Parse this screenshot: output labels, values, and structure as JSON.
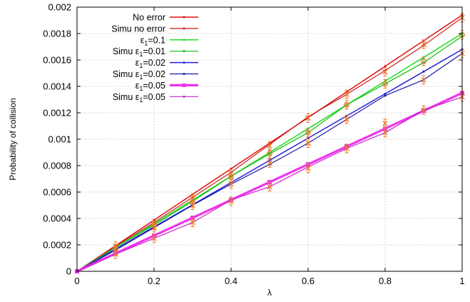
{
  "chart_data": {
    "type": "line",
    "title": "",
    "xlabel": "λ",
    "ylabel": "Probability of collision",
    "xlim": [
      0,
      1
    ],
    "ylim": [
      0,
      0.002
    ],
    "x_ticks": [
      "0",
      "0.2",
      "0.4",
      "0.6",
      "0.8",
      "1"
    ],
    "y_ticks": [
      "0",
      "0.0002",
      "0.0004",
      "0.0006",
      "0.0008",
      "0.001",
      "0.0012",
      "0.0014",
      "0.0016",
      "0.0018",
      "0.002"
    ],
    "grid": true,
    "legend_position": "top-left",
    "series": [
      {
        "name": "No error",
        "legend_base": "No error",
        "legend_sub": "",
        "legend_suffix": "",
        "color": "#dd1111",
        "width": 1.5,
        "x": [
          0,
          0.1,
          0.2,
          0.3,
          0.4,
          0.5,
          0.6,
          0.7,
          0.8,
          0.9,
          1.0
        ],
        "y": [
          0,
          0.000194,
          0.000388,
          0.000582,
          0.000776,
          0.00097,
          0.001164,
          0.001358,
          0.001552,
          0.001746,
          0.00194
        ]
      },
      {
        "name": "Simu no error",
        "legend_base": "Simu no error",
        "legend_sub": "",
        "legend_suffix": "",
        "color": "#cc1a1a",
        "width": 1.2,
        "x": [
          0,
          0.1,
          0.2,
          0.3,
          0.4,
          0.5,
          0.6,
          0.7,
          0.8,
          0.9,
          1.0
        ],
        "y": [
          0,
          0.00019,
          0.00037,
          0.00056,
          0.00075,
          0.00096,
          0.00117,
          0.00134,
          0.00152,
          0.00171,
          0.00192
        ],
        "markers": [
          0.00019,
          0.00035,
          0.00055,
          0.00074,
          0.00095,
          0.00116,
          0.00134,
          0.00151,
          0.00172,
          0.00192
        ]
      },
      {
        "name": "ε1=0.1",
        "legend_base": "ε",
        "legend_sub": "1",
        "legend_suffix": "=0.1",
        "color": "#22dd22",
        "width": 1.5,
        "x": [
          0,
          0.1,
          0.2,
          0.3,
          0.4,
          0.5,
          0.6,
          0.7,
          0.8,
          0.9,
          1.0
        ],
        "y": [
          0,
          0.00018,
          0.00036,
          0.00054,
          0.00072,
          0.0009,
          0.00108,
          0.00126,
          0.00144,
          0.00162,
          0.0018
        ]
      },
      {
        "name": "Simu ε1=0.01",
        "legend_base": "Simu ε",
        "legend_sub": "1",
        "legend_suffix": "=0.01",
        "color": "#11bb11",
        "width": 1.2,
        "x": [
          0,
          0.1,
          0.2,
          0.3,
          0.4,
          0.5,
          0.6,
          0.7,
          0.8,
          0.9,
          1.0
        ],
        "y": [
          0,
          0.00018,
          0.00035,
          0.00053,
          0.00072,
          0.00089,
          0.00105,
          0.00126,
          0.00142,
          0.00158,
          0.00178
        ],
        "markers": [
          0.00017,
          0.00035,
          0.00052,
          0.00071,
          0.00089,
          0.00105,
          0.00126,
          0.00142,
          0.00159,
          0.00179
        ]
      },
      {
        "name": "ε1=0.02",
        "legend_base": "ε",
        "legend_sub": "1",
        "legend_suffix": "=0.02",
        "color": "#2222dd",
        "width": 1.5,
        "x": [
          0,
          0.1,
          0.2,
          0.3,
          0.4,
          0.5,
          0.6,
          0.7,
          0.8,
          0.9,
          1.0
        ],
        "y": [
          0,
          0.000168,
          0.000336,
          0.000504,
          0.000672,
          0.00084,
          0.001008,
          0.001176,
          0.001344,
          0.001512,
          0.00168
        ]
      },
      {
        "name": "Simu ε1=0.02",
        "legend_base": "Simu ε",
        "legend_sub": "1",
        "legend_suffix": "=0.02",
        "color": "#1a1aaa",
        "width": 1.2,
        "x": [
          0,
          0.1,
          0.2,
          0.3,
          0.4,
          0.5,
          0.6,
          0.7,
          0.8,
          0.9,
          1.0
        ],
        "y": [
          0,
          0.00016,
          0.00033,
          0.0005,
          0.00066,
          0.00081,
          0.00097,
          0.00115,
          0.00133,
          0.00145,
          0.00165
        ],
        "markers": [
          0.00017,
          0.00033,
          0.0005,
          0.00066,
          0.00082,
          0.00097,
          0.00115,
          0.00112,
          0.00145,
          0.00165
        ]
      },
      {
        "name": "ε1=0.05",
        "legend_base": "ε",
        "legend_sub": "1",
        "legend_suffix": "=0.05",
        "color": "#ee33ee",
        "width": 3.2,
        "x": [
          0,
          0.1,
          0.2,
          0.3,
          0.4,
          0.5,
          0.6,
          0.7,
          0.8,
          0.9,
          1.0
        ],
        "y": [
          0,
          0.000135,
          0.00027,
          0.000405,
          0.00054,
          0.000675,
          0.00081,
          0.000945,
          0.00108,
          0.001215,
          0.00135
        ]
      },
      {
        "name": "Simu ε1=0.05",
        "legend_base": "Simu ε",
        "legend_sub": "1",
        "legend_suffix": "=0.05",
        "color": "#cc22cc",
        "width": 1.2,
        "x": [
          0,
          0.1,
          0.2,
          0.3,
          0.4,
          0.5,
          0.6,
          0.7,
          0.8,
          0.9,
          1.0
        ],
        "y": [
          0,
          0.00013,
          0.00025,
          0.00037,
          0.00054,
          0.00064,
          0.00079,
          0.00093,
          0.00105,
          0.00122,
          0.00132
        ],
        "markers": [
          0.00013,
          0.00025,
          0.00037,
          0.00053,
          0.00064,
          0.00078,
          0.00093,
          0.00105,
          0.00122,
          0.00132
        ]
      }
    ]
  }
}
